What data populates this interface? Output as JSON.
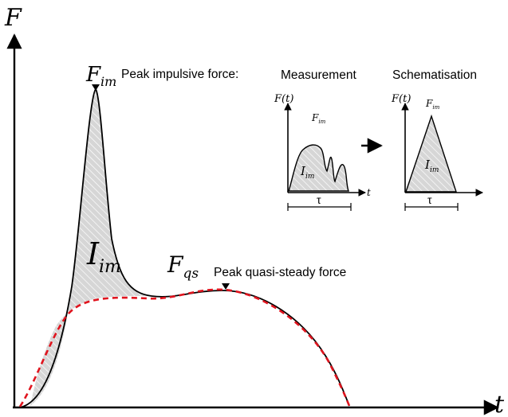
{
  "main_axes": {
    "y_label": "F",
    "x_label": "t"
  },
  "peak_impulsive": {
    "symbol_main": "F",
    "symbol_sub": "im",
    "caption": "Peak impulsive force:"
  },
  "impulse": {
    "symbol_main": "I",
    "symbol_sub": "im"
  },
  "quasi_steady": {
    "symbol_main": "F",
    "symbol_sub": "qs",
    "caption": "Peak quasi-steady force"
  },
  "inset_measurement": {
    "title": "Measurement",
    "y_label": "F(t)",
    "x_label": "t",
    "peak_main": "F",
    "peak_sub": "im",
    "area_main": "I",
    "area_sub": "im",
    "duration": "τ"
  },
  "inset_schematisation": {
    "title": "Schematisation",
    "y_label": "F(t)",
    "x_label": "t",
    "peak_main": "F",
    "peak_sub": "im",
    "area_main": "I",
    "area_sub": "im",
    "duration": "τ"
  },
  "colors": {
    "curve": "#000000",
    "fit_dashed": "#e0141e",
    "hatch_fill": "#d6d6d6",
    "hatch_line": "#ffffff"
  }
}
